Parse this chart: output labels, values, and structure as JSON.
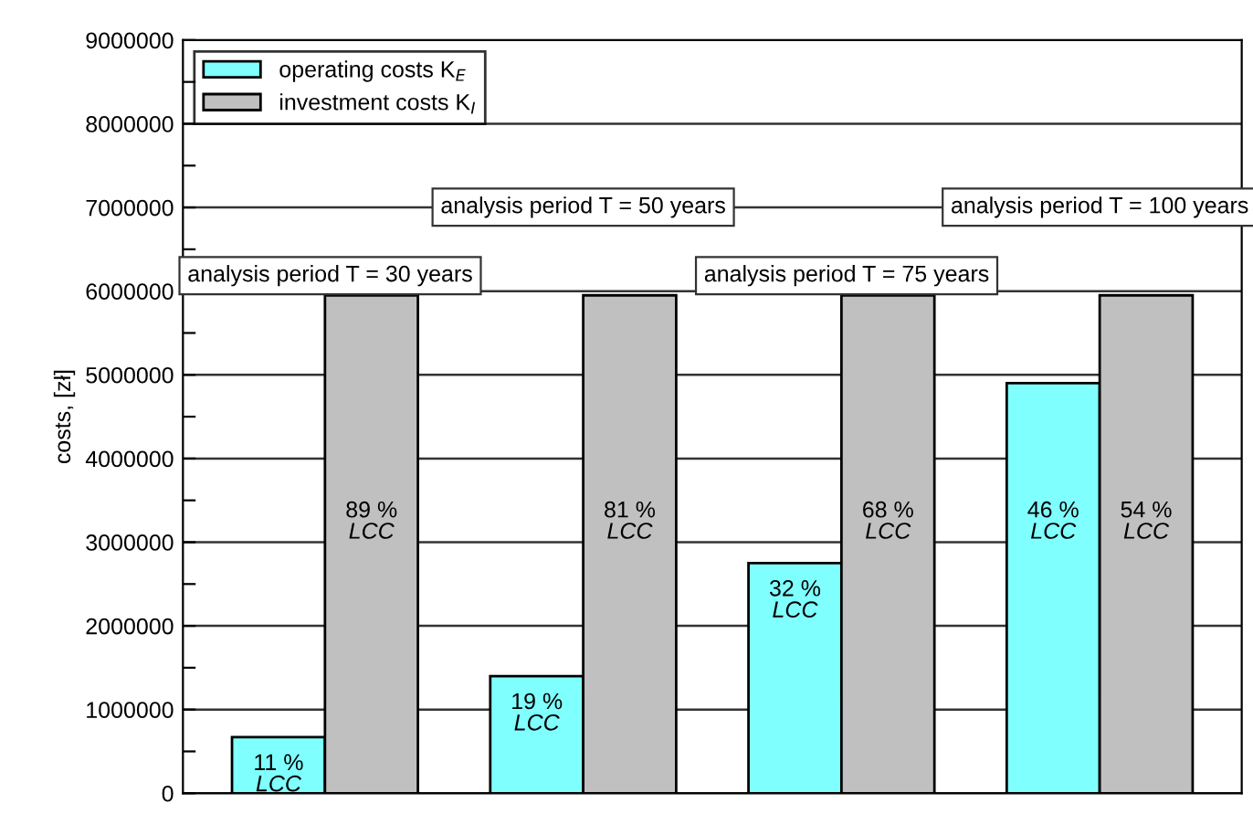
{
  "chart_data": {
    "type": "bar",
    "ylabel": "costs, [zł]",
    "categories": [
      null,
      null,
      null,
      null
    ],
    "series": [
      {
        "name": "operating costs K$_{E}$",
        "color": "#80ffff",
        "values": [
          670000,
          1400000,
          2750000,
          4900000
        ]
      },
      {
        "name": "investment costs K$_{I}$",
        "color": "#c0c0c0",
        "values": [
          5950000,
          5950000,
          5950000,
          5950000
        ]
      }
    ],
    "annotations": [
      "analysis period T = 30 years",
      "analysis period T = 50 years",
      "analysis period T = 75 years",
      "analysis period T = 100 years",
      "11 %\nLCC",
      "19 %\nLCC",
      "32 %\nLCC",
      "46 %\nLCC",
      "89 %\nLCC",
      "81 %\nLCC",
      "68 %\nLCC",
      "54 %\nLCC"
    ],
    "ylim": [
      0,
      9000000
    ],
    "yticks": [
      0,
      {
        "value": 500000,
        "label": null
      },
      1000000,
      {
        "value": 1500000,
        "label": null
      },
      2000000,
      {
        "value": 2500000,
        "label": null
      },
      3000000,
      {
        "value": 3500000,
        "label": null
      },
      4000000,
      {
        "value": 4500000,
        "label": null
      },
      5000000,
      {
        "value": 5500000,
        "label": null
      },
      6000000,
      {
        "value": 6500000,
        "label": null
      },
      7000000,
      {
        "value": 7500000,
        "label": null
      },
      8000000,
      {
        "value": 8500000,
        "label": null
      },
      9000000
    ],
    "grid": "y",
    "legend": "top left",
    "tick_labels": "y"
  }
}
